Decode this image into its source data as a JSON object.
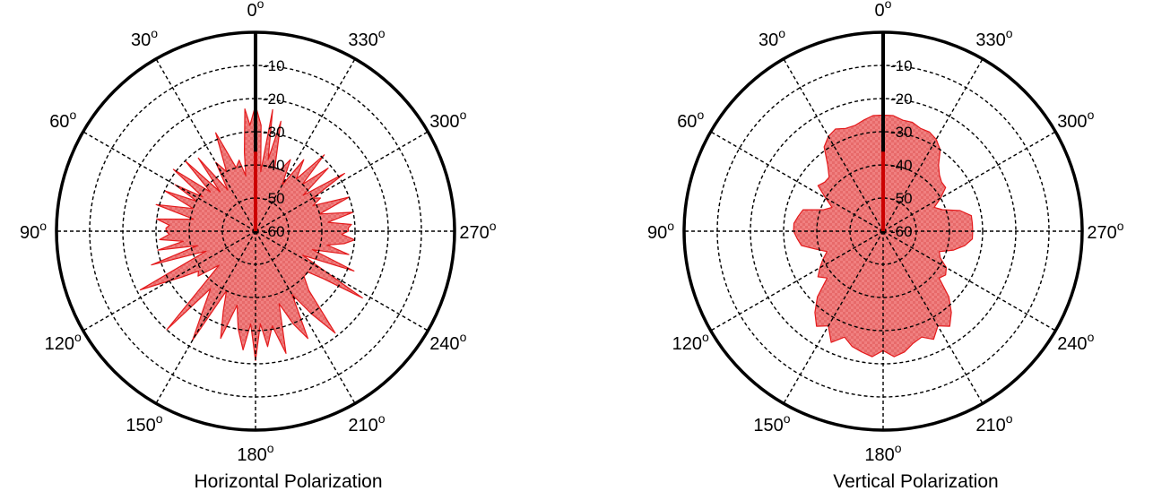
{
  "colors": {
    "fill": "#f08080",
    "stroke": "#e41a1c",
    "grid": "#000000",
    "marker": "#cc0000"
  },
  "chart_data": [
    {
      "type": "polar-area",
      "title": "Horizontal Polarization",
      "angle_direction": "counterclockwise",
      "zero_at": "top",
      "angle_ticks": [
        0,
        30,
        60,
        90,
        120,
        150,
        180,
        210,
        240,
        270,
        300,
        330
      ],
      "angle_labels": [
        "0",
        "30",
        "60",
        "90",
        "120",
        "150",
        "180",
        "210",
        "240",
        "270",
        "300",
        "330"
      ],
      "degree_sup": "o",
      "r_range": [
        -60,
        0
      ],
      "r_ticks": [
        -10,
        -20,
        -30,
        -40,
        -50,
        -60
      ],
      "r_tick_labels": [
        "-10",
        "-20",
        "-30",
        "-40",
        "-50",
        "-60"
      ],
      "grid": true,
      "marker_angle": 0,
      "marker_value": -36,
      "series": [
        {
          "angles": [
            0,
            3,
            5,
            8,
            10,
            13,
            17,
            22,
            26,
            30,
            34,
            38,
            42,
            45,
            49,
            53,
            57,
            60,
            63,
            66,
            70,
            75,
            79,
            83,
            86,
            88,
            90,
            92,
            95,
            98,
            101,
            104,
            108,
            112,
            117,
            122,
            125,
            128,
            133,
            138,
            142,
            146,
            150,
            154,
            158,
            162,
            166,
            170,
            174,
            177,
            180,
            183,
            186,
            190,
            194,
            198,
            202,
            206,
            210,
            214,
            218,
            222,
            227,
            232,
            235,
            238,
            243,
            248,
            252,
            256,
            259,
            262,
            265,
            268,
            270,
            272,
            274,
            277,
            281,
            285,
            290,
            294,
            297,
            300,
            303,
            307,
            311,
            315,
            318,
            322,
            326,
            330,
            334,
            338,
            343,
            347,
            350,
            352,
            355,
            357,
            360
          ],
          "values": [
            -22,
            -28,
            -23,
            -36,
            -43,
            -38,
            -40,
            -28,
            -40,
            -36,
            -45,
            -32,
            -44,
            -30,
            -42,
            -29,
            -41,
            -32,
            -40,
            -30,
            -40,
            -29,
            -41,
            -30,
            -34,
            -33,
            -33,
            -34,
            -31,
            -38,
            -30,
            -42,
            -27,
            -44,
            -21,
            -34,
            -39,
            -38,
            -45,
            -20,
            -38,
            -32,
            -22,
            -40,
            -34,
            -26,
            -37,
            -30,
            -24,
            -32,
            -21,
            -32,
            -25,
            -31,
            -22,
            -37,
            -30,
            -24,
            -38,
            -30,
            -21,
            -36,
            -40,
            -40,
            -35,
            -22,
            -44,
            -28,
            -42,
            -31,
            -38,
            -33,
            -30,
            -34,
            -32,
            -32,
            -31,
            -38,
            -30,
            -40,
            -30,
            -41,
            -38,
            -40,
            -28,
            -42,
            -31,
            -40,
            -29,
            -40,
            -34,
            -44,
            -36,
            -40,
            -40,
            -26,
            -38,
            -23,
            -42,
            -28,
            -22
          ]
        }
      ]
    },
    {
      "type": "polar-area",
      "title": "Vertical Polarization",
      "angle_direction": "counterclockwise",
      "zero_at": "top",
      "angle_ticks": [
        0,
        30,
        60,
        90,
        120,
        150,
        180,
        210,
        240,
        270,
        300,
        330
      ],
      "angle_labels": [
        "0",
        "30",
        "60",
        "90",
        "120",
        "150",
        "180",
        "210",
        "240",
        "270",
        "300",
        "330"
      ],
      "degree_sup": "o",
      "r_range": [
        -60,
        0
      ],
      "r_ticks": [
        -10,
        -20,
        -30,
        -40,
        -50,
        -60
      ],
      "r_tick_labels": [
        "-10",
        "-20",
        "-30",
        "-40",
        "-50",
        "-60"
      ],
      "grid": true,
      "marker_angle": 0,
      "marker_value": -36,
      "series": [
        {
          "angles": [
            0,
            5,
            10,
            15,
            20,
            25,
            30,
            35,
            40,
            45,
            50,
            55,
            60,
            65,
            70,
            75,
            80,
            85,
            90,
            95,
            100,
            105,
            110,
            115,
            120,
            125,
            130,
            135,
            140,
            145,
            150,
            155,
            160,
            165,
            170,
            175,
            180,
            185,
            190,
            195,
            200,
            205,
            210,
            215,
            220,
            225,
            230,
            235,
            240,
            245,
            250,
            255,
            260,
            265,
            270,
            275,
            280,
            285,
            290,
            295,
            300,
            305,
            310,
            315,
            320,
            325,
            330,
            335,
            340,
            345,
            350,
            355,
            360
          ],
          "values": [
            -25,
            -25,
            -26,
            -27,
            -27,
            -26,
            -27,
            -29,
            -34,
            -37,
            -37,
            -36,
            -40,
            -43,
            -41,
            -35,
            -34,
            -33,
            -33,
            -34,
            -35,
            -39,
            -42,
            -40,
            -38,
            -36,
            -38,
            -32,
            -28,
            -25,
            -27,
            -23,
            -26,
            -24,
            -23,
            -22,
            -24,
            -22,
            -23,
            -25,
            -26,
            -24,
            -27,
            -25,
            -28,
            -32,
            -38,
            -37,
            -38,
            -41,
            -42,
            -38,
            -35,
            -33,
            -33,
            -33,
            -33,
            -36,
            -41,
            -43,
            -40,
            -37,
            -37,
            -36,
            -34,
            -30,
            -28,
            -27,
            -27,
            -26,
            -26,
            -25,
            -25
          ]
        }
      ]
    }
  ]
}
